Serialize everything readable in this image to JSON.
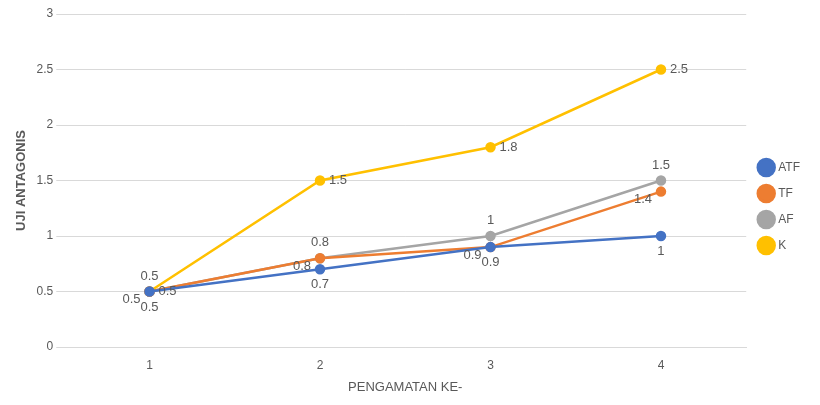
{
  "chart_data": {
    "type": "line",
    "x_label": "PENGAMATAN KE-",
    "y_label": "UJI ANTAGONIS",
    "categories": [
      "1",
      "2",
      "3",
      "4"
    ],
    "series": [
      {
        "name": "ATF",
        "color": "#4472c4",
        "values": [
          0.5,
          0.7,
          0.9,
          1
        ]
      },
      {
        "name": "TF",
        "color": "#ed7d31",
        "values": [
          0.5,
          0.8,
          0.9,
          1.4
        ]
      },
      {
        "name": "AF",
        "color": "#a5a5a5",
        "values": [
          0.5,
          0.8,
          1,
          1.5
        ]
      },
      {
        "name": "K",
        "color": "#ffc000",
        "values": [
          0.5,
          1.5,
          1.8,
          2.5
        ]
      }
    ],
    "ylim": [
      0,
      3
    ],
    "yticks": [
      0,
      0.5,
      1,
      1.5,
      2,
      2.5,
      3
    ],
    "grid": true,
    "legend": "right",
    "data_labels": true,
    "marker": "circle"
  }
}
